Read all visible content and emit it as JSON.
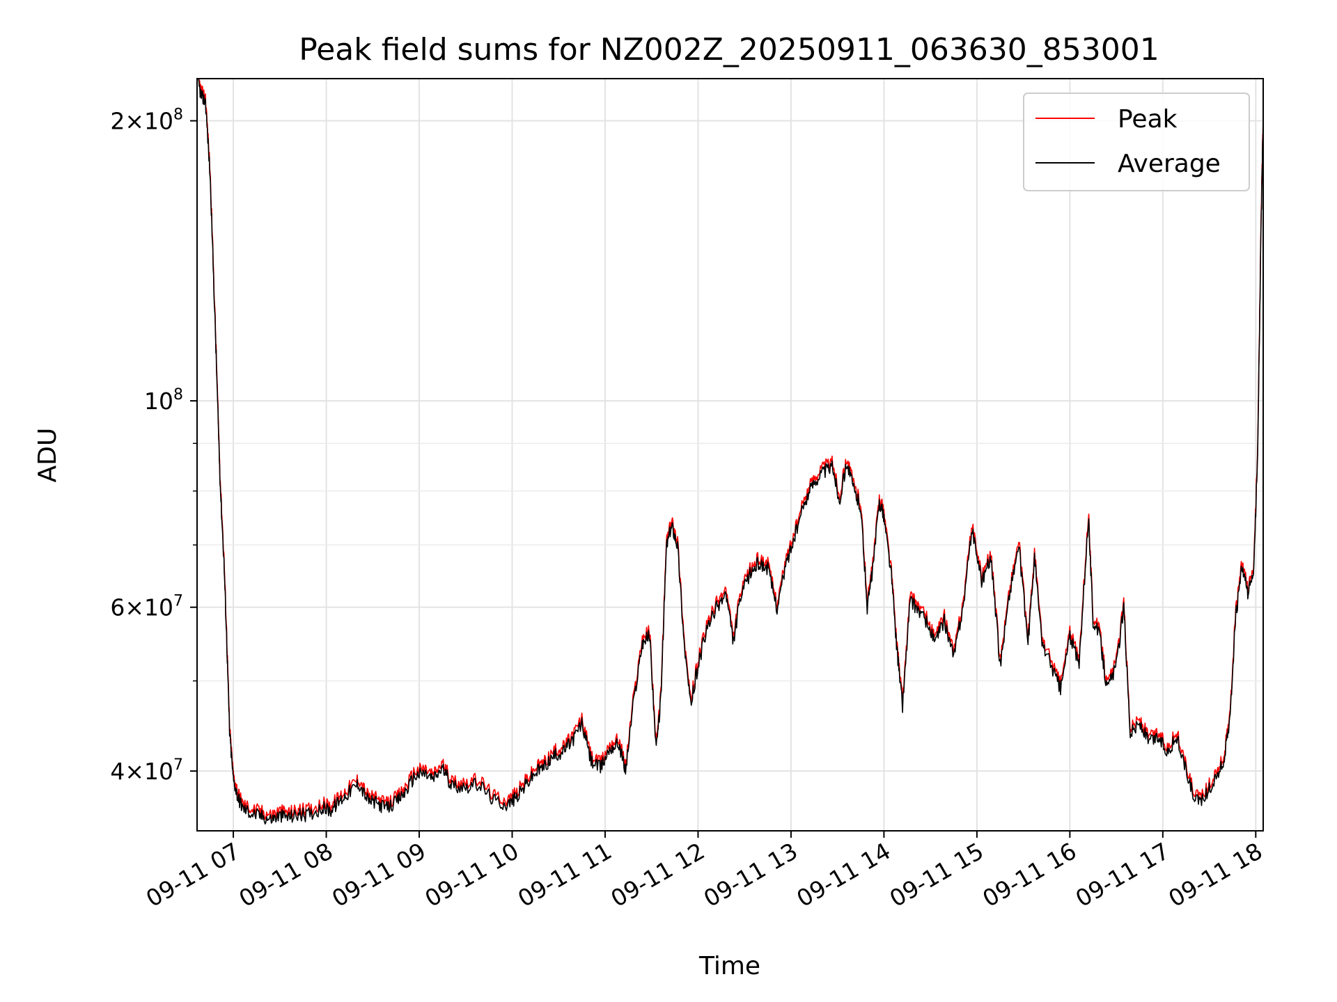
{
  "chart_data": {
    "type": "line",
    "title": "Peak field sums for NZ002Z_20250911_063630_853001",
    "xlabel": "Time",
    "ylabel": "ADU",
    "yscale": "log",
    "ylim": [
      34500000,
      222000000
    ],
    "xlim_hours": [
      6.61,
      18.08
    ],
    "grid": true,
    "legend_position": "top-right",
    "x_ticks": [
      {
        "hour": 7,
        "label": "09-11 07"
      },
      {
        "hour": 8,
        "label": "09-11 08"
      },
      {
        "hour": 9,
        "label": "09-11 09"
      },
      {
        "hour": 10,
        "label": "09-11 10"
      },
      {
        "hour": 11,
        "label": "09-11 11"
      },
      {
        "hour": 12,
        "label": "09-11 12"
      },
      {
        "hour": 13,
        "label": "09-11 13"
      },
      {
        "hour": 14,
        "label": "09-11 14"
      },
      {
        "hour": 15,
        "label": "09-11 15"
      },
      {
        "hour": 16,
        "label": "09-11 16"
      },
      {
        "hour": 17,
        "label": "09-11 17"
      },
      {
        "hour": 18,
        "label": "09-11 18"
      }
    ],
    "y_ticks": [
      {
        "value": 40000000,
        "mant": "4",
        "exp": "7"
      },
      {
        "value": 60000000,
        "mant": "6",
        "exp": "7"
      },
      {
        "value": 100000000,
        "mant": "",
        "exp": "8"
      },
      {
        "value": 200000000,
        "mant": "2",
        "exp": "8"
      }
    ],
    "y_minor_ticks": [
      50000000,
      70000000,
      80000000,
      90000000
    ],
    "series": [
      {
        "name": "Peak",
        "color": "#ff0000",
        "offset_factor": 1.012,
        "points": [
          [
            6.62,
            220000000
          ],
          [
            6.66,
            212000000
          ],
          [
            6.7,
            210000000
          ],
          [
            6.75,
            175000000
          ],
          [
            6.8,
            125000000
          ],
          [
            6.83,
            100000000
          ],
          [
            6.86,
            81000000
          ],
          [
            6.9,
            67000000
          ],
          [
            6.93,
            55000000
          ],
          [
            6.96,
            44000000
          ],
          [
            7.0,
            39200000
          ],
          [
            7.05,
            37500000
          ],
          [
            7.1,
            36500000
          ],
          [
            7.2,
            36000000
          ],
          [
            7.3,
            35800000
          ],
          [
            7.4,
            35500000
          ],
          [
            7.5,
            35800000
          ],
          [
            7.6,
            35700000
          ],
          [
            7.7,
            35900000
          ],
          [
            7.8,
            35900000
          ],
          [
            7.95,
            36500000
          ],
          [
            8.05,
            36300000
          ],
          [
            8.15,
            37200000
          ],
          [
            8.25,
            38000000
          ],
          [
            8.35,
            38800000
          ],
          [
            8.45,
            37200000
          ],
          [
            8.55,
            36900000
          ],
          [
            8.65,
            36500000
          ],
          [
            8.75,
            37000000
          ],
          [
            8.85,
            38000000
          ],
          [
            8.95,
            39500000
          ],
          [
            9.05,
            39800000
          ],
          [
            9.15,
            39200000
          ],
          [
            9.25,
            40300000
          ],
          [
            9.35,
            38600000
          ],
          [
            9.5,
            38500000
          ],
          [
            9.65,
            38700000
          ],
          [
            9.8,
            37200000
          ],
          [
            9.95,
            36800000
          ],
          [
            10.05,
            37500000
          ],
          [
            10.15,
            38700000
          ],
          [
            10.25,
            39800000
          ],
          [
            10.35,
            40500000
          ],
          [
            10.45,
            41500000
          ],
          [
            10.55,
            42000000
          ],
          [
            10.65,
            43200000
          ],
          [
            10.75,
            45000000
          ],
          [
            10.85,
            41000000
          ],
          [
            10.95,
            40300000
          ],
          [
            11.05,
            42300000
          ],
          [
            11.15,
            42800000
          ],
          [
            11.22,
            40000000
          ],
          [
            11.3,
            47000000
          ],
          [
            11.4,
            55000000
          ],
          [
            11.48,
            56000000
          ],
          [
            11.55,
            42000000
          ],
          [
            11.6,
            48000000
          ],
          [
            11.66,
            70000000
          ],
          [
            11.72,
            73500000
          ],
          [
            11.78,
            70000000
          ],
          [
            11.85,
            55000000
          ],
          [
            11.92,
            47000000
          ],
          [
            12.0,
            52000000
          ],
          [
            12.1,
            57000000
          ],
          [
            12.2,
            60000000
          ],
          [
            12.3,
            62000000
          ],
          [
            12.38,
            55000000
          ],
          [
            12.45,
            61000000
          ],
          [
            12.55,
            65000000
          ],
          [
            12.65,
            67000000
          ],
          [
            12.75,
            66000000
          ],
          [
            12.85,
            60000000
          ],
          [
            12.95,
            67000000
          ],
          [
            13.05,
            72000000
          ],
          [
            13.15,
            78000000
          ],
          [
            13.25,
            82000000
          ],
          [
            13.35,
            84000000
          ],
          [
            13.45,
            85000000
          ],
          [
            13.52,
            78000000
          ],
          [
            13.6,
            86000000
          ],
          [
            13.68,
            80000000
          ],
          [
            13.75,
            77000000
          ],
          [
            13.82,
            60000000
          ],
          [
            13.88,
            66000000
          ],
          [
            13.95,
            78000000
          ],
          [
            14.0,
            75000000
          ],
          [
            14.08,
            65000000
          ],
          [
            14.14,
            54000000
          ],
          [
            14.2,
            47000000
          ],
          [
            14.28,
            61000000
          ],
          [
            14.35,
            60000000
          ],
          [
            14.45,
            58000000
          ],
          [
            14.55,
            55000000
          ],
          [
            14.65,
            58000000
          ],
          [
            14.75,
            53000000
          ],
          [
            14.85,
            60000000
          ],
          [
            14.95,
            73000000
          ],
          [
            15.05,
            64000000
          ],
          [
            15.15,
            68000000
          ],
          [
            15.25,
            52000000
          ],
          [
            15.35,
            62000000
          ],
          [
            15.45,
            70000000
          ],
          [
            15.55,
            55000000
          ],
          [
            15.62,
            68000000
          ],
          [
            15.7,
            55000000
          ],
          [
            15.8,
            52000000
          ],
          [
            15.9,
            49000000
          ],
          [
            16.0,
            56000000
          ],
          [
            16.1,
            52000000
          ],
          [
            16.2,
            75000000
          ],
          [
            16.25,
            58000000
          ],
          [
            16.32,
            56000000
          ],
          [
            16.4,
            49000000
          ],
          [
            16.5,
            52000000
          ],
          [
            16.58,
            60000000
          ],
          [
            16.65,
            44000000
          ],
          [
            16.75,
            45000000
          ],
          [
            16.85,
            43000000
          ],
          [
            16.95,
            43500000
          ],
          [
            17.05,
            42000000
          ],
          [
            17.15,
            43500000
          ],
          [
            17.25,
            40000000
          ],
          [
            17.35,
            37000000
          ],
          [
            17.45,
            37500000
          ],
          [
            17.55,
            39000000
          ],
          [
            17.65,
            40800000
          ],
          [
            17.72,
            45000000
          ],
          [
            17.78,
            58000000
          ],
          [
            17.85,
            66000000
          ],
          [
            17.92,
            62000000
          ],
          [
            17.98,
            66000000
          ],
          [
            18.02,
            88000000
          ],
          [
            18.06,
            160000000
          ],
          [
            18.08,
            200000000
          ]
        ]
      },
      {
        "name": "Average",
        "color": "#000000",
        "offset_factor": 1.0,
        "points": [
          [
            6.62,
            220000000
          ],
          [
            6.66,
            212000000
          ],
          [
            6.7,
            210000000
          ],
          [
            6.75,
            175000000
          ],
          [
            6.8,
            125000000
          ],
          [
            6.83,
            100000000
          ],
          [
            6.86,
            81000000
          ],
          [
            6.9,
            67000000
          ],
          [
            6.93,
            55000000
          ],
          [
            6.96,
            44000000
          ],
          [
            7.0,
            39200000
          ],
          [
            7.05,
            37500000
          ],
          [
            7.1,
            36500000
          ],
          [
            7.2,
            36000000
          ],
          [
            7.3,
            35800000
          ],
          [
            7.4,
            35500000
          ],
          [
            7.5,
            35800000
          ],
          [
            7.6,
            35700000
          ],
          [
            7.7,
            35900000
          ],
          [
            7.8,
            35900000
          ],
          [
            7.95,
            36500000
          ],
          [
            8.05,
            36300000
          ],
          [
            8.15,
            37200000
          ],
          [
            8.25,
            38000000
          ],
          [
            8.35,
            38800000
          ],
          [
            8.45,
            37200000
          ],
          [
            8.55,
            36900000
          ],
          [
            8.65,
            36500000
          ],
          [
            8.75,
            37000000
          ],
          [
            8.85,
            38000000
          ],
          [
            8.95,
            39500000
          ],
          [
            9.05,
            39800000
          ],
          [
            9.15,
            39200000
          ],
          [
            9.25,
            40300000
          ],
          [
            9.35,
            38600000
          ],
          [
            9.5,
            38500000
          ],
          [
            9.65,
            38700000
          ],
          [
            9.8,
            37200000
          ],
          [
            9.95,
            36800000
          ],
          [
            10.05,
            37500000
          ],
          [
            10.15,
            38700000
          ],
          [
            10.25,
            39800000
          ],
          [
            10.35,
            40500000
          ],
          [
            10.45,
            41500000
          ],
          [
            10.55,
            42000000
          ],
          [
            10.65,
            43200000
          ],
          [
            10.75,
            45000000
          ],
          [
            10.85,
            41000000
          ],
          [
            10.95,
            40300000
          ],
          [
            11.05,
            42300000
          ],
          [
            11.15,
            42800000
          ],
          [
            11.22,
            40000000
          ],
          [
            11.3,
            47000000
          ],
          [
            11.4,
            55000000
          ],
          [
            11.48,
            56000000
          ],
          [
            11.55,
            42000000
          ],
          [
            11.6,
            48000000
          ],
          [
            11.66,
            70000000
          ],
          [
            11.72,
            73500000
          ],
          [
            11.78,
            70000000
          ],
          [
            11.85,
            55000000
          ],
          [
            11.92,
            47000000
          ],
          [
            12.0,
            52000000
          ],
          [
            12.1,
            57000000
          ],
          [
            12.2,
            60000000
          ],
          [
            12.3,
            62000000
          ],
          [
            12.38,
            55000000
          ],
          [
            12.45,
            61000000
          ],
          [
            12.55,
            65000000
          ],
          [
            12.65,
            67000000
          ],
          [
            12.75,
            66000000
          ],
          [
            12.85,
            60000000
          ],
          [
            12.95,
            67000000
          ],
          [
            13.05,
            72000000
          ],
          [
            13.15,
            78000000
          ],
          [
            13.25,
            82000000
          ],
          [
            13.35,
            84000000
          ],
          [
            13.45,
            85000000
          ],
          [
            13.52,
            78000000
          ],
          [
            13.6,
            86000000
          ],
          [
            13.68,
            80000000
          ],
          [
            13.75,
            77000000
          ],
          [
            13.82,
            60000000
          ],
          [
            13.88,
            66000000
          ],
          [
            13.95,
            78000000
          ],
          [
            14.0,
            75000000
          ],
          [
            14.08,
            65000000
          ],
          [
            14.14,
            54000000
          ],
          [
            14.2,
            47000000
          ],
          [
            14.28,
            61000000
          ],
          [
            14.35,
            60000000
          ],
          [
            14.45,
            58000000
          ],
          [
            14.55,
            55000000
          ],
          [
            14.65,
            58000000
          ],
          [
            14.75,
            53000000
          ],
          [
            14.85,
            60000000
          ],
          [
            14.95,
            73000000
          ],
          [
            15.05,
            64000000
          ],
          [
            15.15,
            68000000
          ],
          [
            15.25,
            52000000
          ],
          [
            15.35,
            62000000
          ],
          [
            15.45,
            70000000
          ],
          [
            15.55,
            55000000
          ],
          [
            15.62,
            68000000
          ],
          [
            15.7,
            55000000
          ],
          [
            15.8,
            52000000
          ],
          [
            15.9,
            49000000
          ],
          [
            16.0,
            56000000
          ],
          [
            16.1,
            52000000
          ],
          [
            16.2,
            75000000
          ],
          [
            16.25,
            58000000
          ],
          [
            16.32,
            56000000
          ],
          [
            16.4,
            49000000
          ],
          [
            16.5,
            52000000
          ],
          [
            16.58,
            60000000
          ],
          [
            16.65,
            44000000
          ],
          [
            16.75,
            45000000
          ],
          [
            16.85,
            43000000
          ],
          [
            16.95,
            43500000
          ],
          [
            17.05,
            42000000
          ],
          [
            17.15,
            43500000
          ],
          [
            17.25,
            40000000
          ],
          [
            17.35,
            37000000
          ],
          [
            17.45,
            37500000
          ],
          [
            17.55,
            39000000
          ],
          [
            17.65,
            40800000
          ],
          [
            17.72,
            45000000
          ],
          [
            17.78,
            58000000
          ],
          [
            17.85,
            66000000
          ],
          [
            17.92,
            62000000
          ],
          [
            17.98,
            66000000
          ],
          [
            18.02,
            88000000
          ],
          [
            18.06,
            160000000
          ],
          [
            18.08,
            200000000
          ]
        ]
      }
    ]
  }
}
